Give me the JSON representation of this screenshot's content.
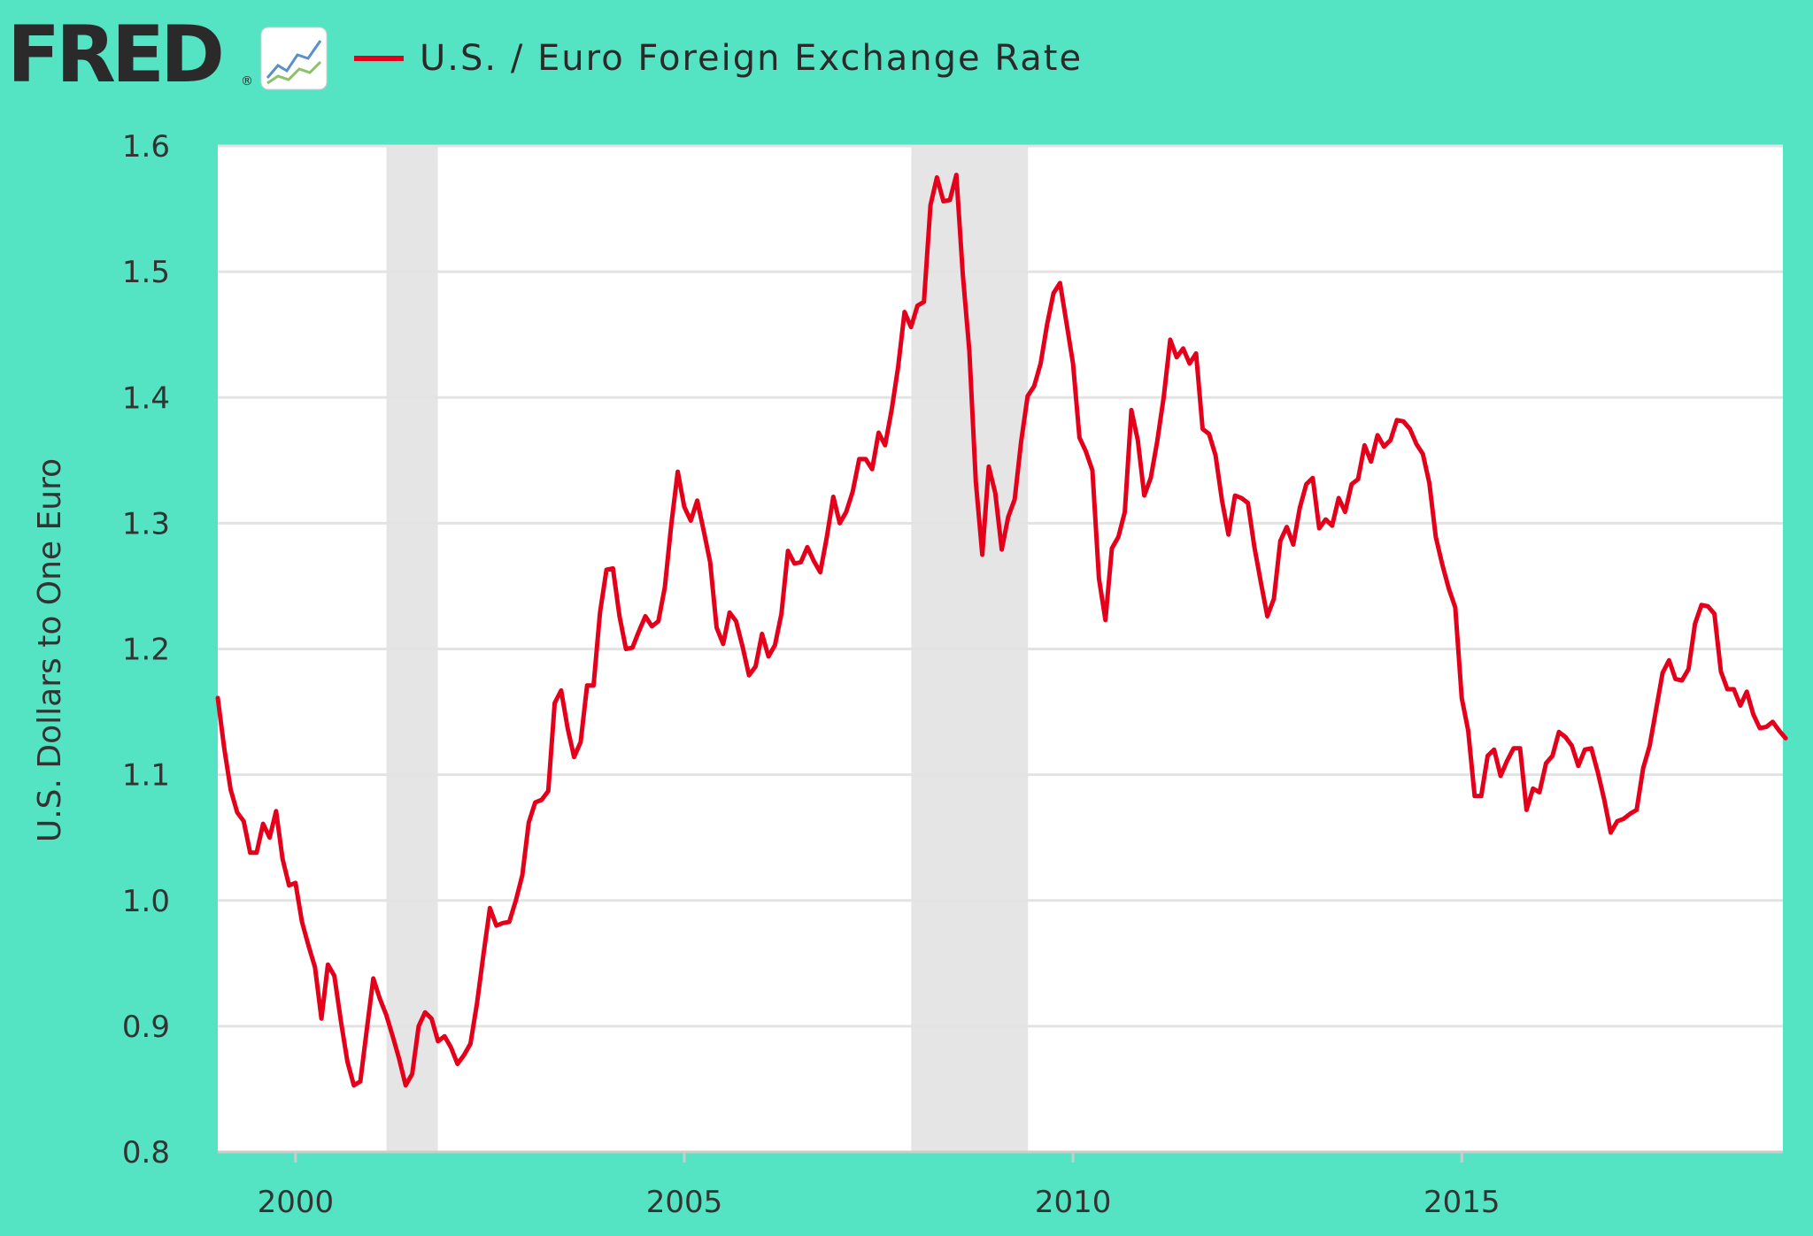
{
  "header": {
    "logo_text": "FRED",
    "logo_registered": "®",
    "legend_label": "U.S. / Euro Foreign Exchange Rate"
  },
  "colors": {
    "background": "#54e3c3",
    "plot_background": "#ffffff",
    "series": "#e4001b",
    "grid": "#e3e3e3",
    "recession": "#e5e5e5",
    "text": "#333333"
  },
  "chart_data": {
    "type": "line",
    "title": "U.S. / Euro Foreign Exchange Rate",
    "xlabel": "",
    "ylabel": "U.S. Dollars to One Euro",
    "xlim": [
      1999.0,
      2019.13
    ],
    "ylim": [
      0.8,
      1.6
    ],
    "y_ticks": [
      0.8,
      0.9,
      1.0,
      1.1,
      1.2,
      1.3,
      1.4,
      1.5,
      1.6
    ],
    "y_tick_labels": [
      "0.8",
      "0.9",
      "1.0",
      "1.1",
      "1.2",
      "1.3",
      "1.4",
      "1.5",
      "1.6"
    ],
    "x_ticks": [
      2000,
      2005,
      2010,
      2015
    ],
    "x_tick_labels": [
      "2000",
      "2005",
      "2010",
      "2015"
    ],
    "grid": true,
    "recessions": [
      {
        "start": 2001.17,
        "end": 2001.83
      },
      {
        "start": 2007.92,
        "end": 2009.42
      }
    ],
    "series": [
      {
        "name": "U.S. / Euro Foreign Exchange Rate",
        "x_start": 1999.0,
        "x_step": 0.08333,
        "values": [
          1.161,
          1.121,
          1.088,
          1.07,
          1.063,
          1.038,
          1.038,
          1.061,
          1.05,
          1.071,
          1.033,
          1.012,
          1.014,
          0.983,
          0.964,
          0.947,
          0.906,
          0.949,
          0.94,
          0.904,
          0.872,
          0.853,
          0.856,
          0.897,
          0.938,
          0.922,
          0.909,
          0.892,
          0.874,
          0.853,
          0.862,
          0.9,
          0.911,
          0.906,
          0.888,
          0.892,
          0.883,
          0.87,
          0.877,
          0.886,
          0.918,
          0.957,
          0.994,
          0.98,
          0.982,
          0.983,
          1.0,
          1.02,
          1.062,
          1.078,
          1.08,
          1.087,
          1.157,
          1.167,
          1.137,
          1.114,
          1.126,
          1.171,
          1.171,
          1.229,
          1.263,
          1.264,
          1.226,
          1.2,
          1.201,
          1.214,
          1.226,
          1.218,
          1.222,
          1.249,
          1.299,
          1.341,
          1.313,
          1.302,
          1.318,
          1.294,
          1.269,
          1.217,
          1.204,
          1.229,
          1.222,
          1.202,
          1.179,
          1.186,
          1.212,
          1.194,
          1.203,
          1.228,
          1.278,
          1.268,
          1.269,
          1.281,
          1.27,
          1.261,
          1.289,
          1.321,
          1.3,
          1.309,
          1.325,
          1.351,
          1.351,
          1.343,
          1.372,
          1.362,
          1.39,
          1.424,
          1.468,
          1.456,
          1.473,
          1.476,
          1.553,
          1.575,
          1.556,
          1.557,
          1.577,
          1.497,
          1.437,
          1.333,
          1.275,
          1.345,
          1.324,
          1.279,
          1.305,
          1.319,
          1.365,
          1.401,
          1.409,
          1.427,
          1.458,
          1.483,
          1.491,
          1.459,
          1.427,
          1.368,
          1.357,
          1.342,
          1.256,
          1.223,
          1.28,
          1.289,
          1.309,
          1.39,
          1.366,
          1.322,
          1.336,
          1.365,
          1.4,
          1.446,
          1.432,
          1.439,
          1.427,
          1.435,
          1.375,
          1.371,
          1.354,
          1.318,
          1.291,
          1.322,
          1.32,
          1.316,
          1.281,
          1.253,
          1.226,
          1.24,
          1.286,
          1.297,
          1.283,
          1.312,
          1.331,
          1.336,
          1.296,
          1.303,
          1.298,
          1.32,
          1.309,
          1.331,
          1.335,
          1.362,
          1.349,
          1.37,
          1.361,
          1.366,
          1.382,
          1.381,
          1.375,
          1.363,
          1.355,
          1.332,
          1.289,
          1.267,
          1.248,
          1.233,
          1.161,
          1.135,
          1.083,
          1.083,
          1.115,
          1.12,
          1.099,
          1.111,
          1.121,
          1.121,
          1.072,
          1.089,
          1.086,
          1.109,
          1.115,
          1.134,
          1.13,
          1.123,
          1.107,
          1.12,
          1.121,
          1.102,
          1.08,
          1.054,
          1.063,
          1.065,
          1.069,
          1.072,
          1.105,
          1.123,
          1.152,
          1.181,
          1.191,
          1.176,
          1.175,
          1.184,
          1.22,
          1.235,
          1.234,
          1.228,
          1.182,
          1.168,
          1.168,
          1.155,
          1.166,
          1.148,
          1.137,
          1.138,
          1.142,
          1.135,
          1.129
        ]
      }
    ]
  }
}
